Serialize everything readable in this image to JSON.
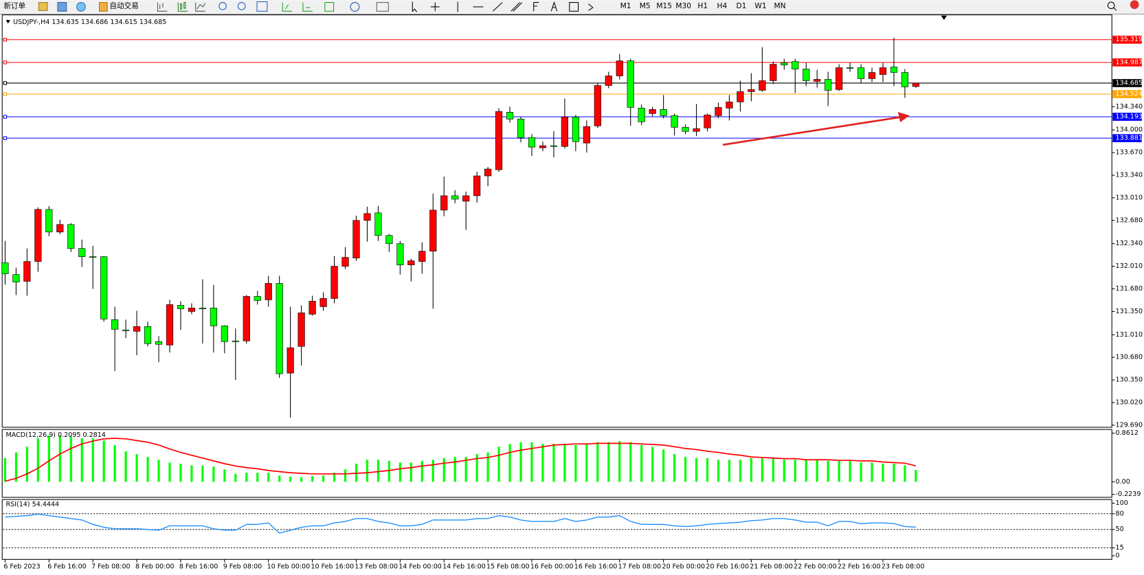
{
  "toolbar": {
    "new_order": "新订单",
    "auto_trading": "自动交易",
    "timeframes": [
      "M1",
      "M5",
      "M15",
      "M30",
      "H1",
      "H4",
      "D1",
      "W1",
      "MN"
    ]
  },
  "chart_data": [
    {
      "type": "candlestick",
      "title": "USDJPY-,H4 134.635 134.686 134.615 134.685",
      "categories": [
        "6 Feb 2023",
        null,
        null,
        null,
        "6 Feb 16:00",
        null,
        null,
        null,
        "7 Feb 08:00",
        null,
        null,
        null,
        "8 Feb 00:00",
        null,
        null,
        null,
        "8 Feb 16:00",
        null,
        null,
        null,
        "9 Feb 08:00",
        null,
        null,
        null,
        "10 Feb 00:00",
        null,
        null,
        null,
        "10 Feb 16:00",
        null,
        null,
        null,
        "13 Feb 08:00",
        null,
        null,
        null,
        "14 Feb 00:00",
        null,
        null,
        null,
        "14 Feb 16:00",
        null,
        null,
        null,
        "15 Feb 08:00",
        null,
        null,
        null,
        "16 Feb 00:00",
        null,
        null,
        null,
        "16 Feb 16:00",
        null,
        null,
        null,
        "17 Feb 08:00",
        null,
        null,
        null,
        "20 Feb 00:00",
        null,
        null,
        null,
        "20 Feb 16:00",
        null,
        null,
        null,
        "21 Feb 08:00",
        null,
        null,
        null,
        "22 Feb 00:00",
        null,
        null,
        null,
        "22 Feb 16:00",
        null,
        null,
        null,
        "23 Feb 08:00",
        null,
        null,
        null
      ],
      "open": [
        132.06,
        131.89,
        131.79,
        132.08,
        132.84,
        132.51,
        132.62,
        132.27,
        132.15,
        132.15,
        131.23,
        131.08,
        131.06,
        131.13,
        130.91,
        130.86,
        131.44,
        131.35,
        131.4,
        131.4,
        131.14,
        130.92,
        130.92,
        131.57,
        131.52,
        131.76,
        130.45,
        130.84,
        131.31,
        131.42,
        131.54,
        132.01,
        132.13,
        132.68,
        132.79,
        132.46,
        132.34,
        132.03,
        132.08,
        132.23,
        132.83,
        133.04,
        132.96,
        133.04,
        133.33,
        133.42,
        134.26,
        134.16,
        133.89,
        133.74,
        133.77,
        133.76,
        134.19,
        133.81,
        134.06,
        134.65,
        134.79,
        135.01,
        134.32,
        134.24,
        134.3,
        134.21,
        134.04,
        133.98,
        134.03,
        134.21,
        134.32,
        134.41,
        134.56,
        134.58,
        134.72,
        134.98,
        135.0,
        134.89,
        134.71,
        134.74,
        134.59,
        134.91,
        134.91,
        134.75,
        134.81,
        134.92,
        134.84,
        134.635
      ],
      "high": [
        132.38,
        131.99,
        132.27,
        132.87,
        132.89,
        132.69,
        132.64,
        132.4,
        132.31,
        132.16,
        131.42,
        131.23,
        131.36,
        131.2,
        130.99,
        131.52,
        131.5,
        131.47,
        131.82,
        131.74,
        131.15,
        131.1,
        131.59,
        131.65,
        131.87,
        131.87,
        131.42,
        131.44,
        131.58,
        131.63,
        132.16,
        132.29,
        132.75,
        132.88,
        132.89,
        132.48,
        132.38,
        132.12,
        132.36,
        133.07,
        133.32,
        133.12,
        133.1,
        133.39,
        133.46,
        134.32,
        134.34,
        134.19,
        133.94,
        133.83,
        133.98,
        134.46,
        134.22,
        134.14,
        134.69,
        134.85,
        135.11,
        135.04,
        134.37,
        134.34,
        134.51,
        134.24,
        134.08,
        134.38,
        134.24,
        134.4,
        134.51,
        134.72,
        134.83,
        135.21,
        135.0,
        135.04,
        135.04,
        134.98,
        134.88,
        134.85,
        134.96,
        134.98,
        134.96,
        134.91,
        134.98,
        135.35,
        134.89,
        134.686
      ],
      "low": [
        131.74,
        131.59,
        131.58,
        131.93,
        132.45,
        132.48,
        132.22,
        132.0,
        131.68,
        131.2,
        130.48,
        130.96,
        130.71,
        130.84,
        130.61,
        130.75,
        131.08,
        131.31,
        130.88,
        130.75,
        130.74,
        130.35,
        130.88,
        131.45,
        131.42,
        130.38,
        129.8,
        130.56,
        131.29,
        131.36,
        131.47,
        131.97,
        132.09,
        132.37,
        132.38,
        132.22,
        131.89,
        131.79,
        131.9,
        131.39,
        132.74,
        132.93,
        132.54,
        132.94,
        133.18,
        133.39,
        134.11,
        133.82,
        133.62,
        133.69,
        133.6,
        133.73,
        133.69,
        133.67,
        134.03,
        134.61,
        134.74,
        134.06,
        134.07,
        134.2,
        134.17,
        133.92,
        133.94,
        133.91,
        133.98,
        134.17,
        134.14,
        134.27,
        134.42,
        134.56,
        134.67,
        134.88,
        134.54,
        134.64,
        134.62,
        134.35,
        134.57,
        134.85,
        134.68,
        134.7,
        134.7,
        134.64,
        134.47,
        134.615
      ],
      "close": [
        131.9,
        131.78,
        132.08,
        132.84,
        132.51,
        132.62,
        132.27,
        132.15,
        132.14,
        131.24,
        131.09,
        131.07,
        131.13,
        130.88,
        130.87,
        131.45,
        131.39,
        131.4,
        131.39,
        131.14,
        130.91,
        130.91,
        131.57,
        131.51,
        131.76,
        130.44,
        130.82,
        131.33,
        131.5,
        131.54,
        132.01,
        132.14,
        132.68,
        132.78,
        132.46,
        132.34,
        132.03,
        132.09,
        132.23,
        132.83,
        133.04,
        132.99,
        133.04,
        133.33,
        133.43,
        134.27,
        134.16,
        133.89,
        133.75,
        133.77,
        133.76,
        134.19,
        133.83,
        134.05,
        134.65,
        134.79,
        135.01,
        134.33,
        134.12,
        134.3,
        134.21,
        134.04,
        133.98,
        134.02,
        134.22,
        134.33,
        134.41,
        134.56,
        134.59,
        134.72,
        134.96,
        134.95,
        134.89,
        134.72,
        134.74,
        134.58,
        134.91,
        134.9,
        134.75,
        134.84,
        134.91,
        134.84,
        134.63,
        134.685
      ],
      "up_color": "#ff0000",
      "down_color": "#00ff00",
      "wick_color": "#000000",
      "ylim": [
        129.68,
        135.66
      ],
      "yticks": [
        {
          "value": 134.34,
          "label": "134.340"
        },
        {
          "value": 134.0,
          "label": "134.000"
        },
        {
          "value": 133.67,
          "label": "133.670"
        },
        {
          "value": 133.34,
          "label": "133.340"
        },
        {
          "value": 133.01,
          "label": "133.010"
        },
        {
          "value": 132.68,
          "label": "132.680"
        },
        {
          "value": 132.34,
          "label": "132.340"
        },
        {
          "value": 132.01,
          "label": "132.010"
        },
        {
          "value": 131.68,
          "label": "131.680"
        },
        {
          "value": 131.35,
          "label": "131.350"
        },
        {
          "value": 131.01,
          "label": "131.010"
        },
        {
          "value": 130.68,
          "label": "130.680"
        },
        {
          "value": 130.35,
          "label": "130.350"
        },
        {
          "value": 130.02,
          "label": "130.020"
        },
        {
          "value": 129.69,
          "label": "129.690"
        }
      ],
      "hlines": [
        {
          "value": 135.319,
          "color": "#ff0000"
        },
        {
          "value": 134.987,
          "color": "#ff0000"
        },
        {
          "value": 134.685,
          "color": "#000000"
        },
        {
          "value": 134.524,
          "color": "#ffa500"
        },
        {
          "value": 134.193,
          "color": "#0000ff"
        },
        {
          "value": 133.881,
          "color": "#0000ff"
        }
      ]
    },
    {
      "type": "macd",
      "title": "MACD(12,26,9) 0.2095 0.2814",
      "values": [
        0.42,
        0.52,
        0.62,
        0.77,
        0.82,
        0.82,
        0.8,
        0.77,
        0.77,
        0.73,
        0.65,
        0.54,
        0.49,
        0.44,
        0.39,
        0.34,
        0.32,
        0.29,
        0.29,
        0.27,
        0.22,
        0.14,
        0.16,
        0.16,
        0.16,
        0.11,
        0.09,
        0.08,
        0.1,
        0.11,
        0.16,
        0.22,
        0.32,
        0.39,
        0.39,
        0.37,
        0.34,
        0.34,
        0.37,
        0.39,
        0.42,
        0.44,
        0.44,
        0.49,
        0.52,
        0.62,
        0.67,
        0.7,
        0.7,
        0.67,
        0.67,
        0.67,
        0.65,
        0.67,
        0.7,
        0.7,
        0.72,
        0.7,
        0.65,
        0.62,
        0.57,
        0.49,
        0.44,
        0.42,
        0.42,
        0.39,
        0.39,
        0.39,
        0.42,
        0.42,
        0.42,
        0.39,
        0.39,
        0.39,
        0.39,
        0.37,
        0.37,
        0.37,
        0.34,
        0.34,
        0.32,
        0.32,
        0.29,
        0.2095
      ],
      "color": "#00ff00",
      "signal_values": [
        0.01,
        0.06,
        0.14,
        0.24,
        0.37,
        0.49,
        0.59,
        0.67,
        0.72,
        0.76,
        0.77,
        0.76,
        0.73,
        0.7,
        0.65,
        0.58,
        0.52,
        0.47,
        0.42,
        0.37,
        0.32,
        0.28,
        0.25,
        0.23,
        0.2,
        0.18,
        0.16,
        0.15,
        0.14,
        0.14,
        0.14,
        0.14,
        0.15,
        0.16,
        0.18,
        0.2,
        0.23,
        0.25,
        0.28,
        0.3,
        0.33,
        0.35,
        0.38,
        0.41,
        0.43,
        0.47,
        0.52,
        0.56,
        0.59,
        0.62,
        0.65,
        0.66,
        0.67,
        0.67,
        0.68,
        0.68,
        0.68,
        0.68,
        0.67,
        0.66,
        0.65,
        0.62,
        0.59,
        0.57,
        0.54,
        0.52,
        0.49,
        0.47,
        0.44,
        0.43,
        0.42,
        0.41,
        0.41,
        0.39,
        0.39,
        0.39,
        0.38,
        0.38,
        0.37,
        0.37,
        0.35,
        0.34,
        0.33,
        0.2814
      ],
      "signal_color": "#ff0000",
      "ylim": [
        -0.2239,
        0.8612
      ],
      "yticks": [
        0.8612,
        {
          "value": 0,
          "label": "0.00"
        },
        -0.2239
      ]
    },
    {
      "type": "line",
      "title": "RSI(14) 54.4444",
      "values": [
        73.6,
        75.0,
        76.4,
        79.2,
        76.4,
        73.6,
        70.8,
        68.1,
        59.7,
        54.2,
        51.4,
        51.4,
        51.4,
        50.0,
        48.6,
        56.9,
        56.9,
        56.9,
        56.9,
        51.4,
        48.6,
        48.6,
        59.7,
        59.7,
        62.5,
        43.1,
        48.6,
        54.2,
        56.9,
        56.9,
        62.5,
        65.3,
        70.8,
        70.8,
        65.3,
        62.5,
        56.9,
        56.9,
        59.7,
        68.1,
        68.1,
        68.1,
        68.1,
        70.8,
        70.8,
        76.4,
        73.6,
        68.1,
        65.3,
        65.3,
        65.3,
        70.8,
        65.3,
        68.1,
        73.6,
        73.6,
        76.4,
        65.3,
        59.7,
        59.7,
        59.7,
        56.9,
        55.6,
        56.9,
        59.7,
        61.1,
        62.5,
        63.9,
        66.7,
        68.1,
        70.8,
        70.8,
        68.1,
        63.9,
        63.9,
        56.9,
        65.3,
        65.3,
        61.1,
        62.5,
        62.5,
        61.1,
        55.6,
        54.4444
      ],
      "color": "#1e90ff",
      "ylim": [
        0,
        100
      ],
      "yticks": [
        100,
        80,
        50,
        15,
        0
      ],
      "levels": [
        80,
        50,
        15
      ]
    }
  ]
}
